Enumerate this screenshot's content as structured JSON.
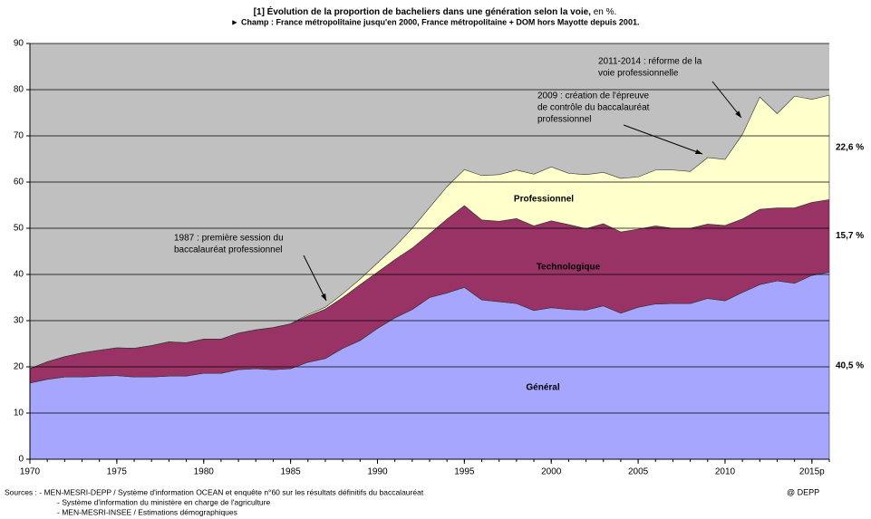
{
  "chart_data": {
    "type": "stacked_area",
    "title": "[1] Évolution de la proportion de bacheliers dans une génération selon la voie,",
    "title_unit": "en %.",
    "subtitle": "► Champ : France métropolitaine jusqu'en 2000, France métropolitaine + DOM hors Mayotte depuis 2001.",
    "x": [
      1970,
      1971,
      1972,
      1973,
      1974,
      1975,
      1976,
      1977,
      1978,
      1979,
      1980,
      1981,
      1982,
      1983,
      1984,
      1985,
      1986,
      1987,
      1988,
      1989,
      1990,
      1991,
      1992,
      1993,
      1994,
      1995,
      1996,
      1997,
      1998,
      1999,
      2000,
      2001,
      2002,
      2003,
      2004,
      2005,
      2006,
      2007,
      2008,
      2009,
      2010,
      2011,
      2012,
      2013,
      2014,
      2015,
      2016
    ],
    "series": [
      {
        "name": "Général",
        "color": "#a6a6ff",
        "values": [
          16.5,
          17.3,
          17.8,
          17.8,
          18.0,
          18.1,
          17.8,
          17.8,
          18.0,
          18.0,
          18.6,
          18.6,
          19.4,
          19.6,
          19.4,
          19.6,
          21.0,
          21.8,
          24.0,
          25.7,
          28.3,
          30.6,
          32.4,
          35.0,
          36.0,
          37.2,
          34.5,
          34.1,
          33.7,
          32.2,
          32.8,
          32.4,
          32.3,
          33.2,
          31.6,
          32.9,
          33.6,
          33.7,
          33.7,
          34.8,
          34.3,
          36.1,
          37.8,
          38.6,
          38.1,
          39.8,
          40.5
        ],
        "value_labels": [
          null,
          null,
          null,
          null,
          null,
          null,
          null,
          null,
          null,
          null,
          null,
          null,
          null,
          null,
          null,
          null,
          null,
          null,
          null,
          null,
          null,
          null,
          null,
          null,
          null,
          null,
          null,
          null,
          null,
          null,
          null,
          null,
          null,
          null,
          null,
          null,
          null,
          null,
          null,
          null,
          null,
          null,
          null,
          null,
          null,
          null,
          "40,5 %"
        ]
      },
      {
        "name": "Technologique",
        "color": "#993366",
        "values": [
          3.1,
          3.8,
          4.4,
          5.2,
          5.6,
          6.0,
          6.2,
          6.8,
          7.4,
          7.2,
          7.4,
          7.4,
          7.9,
          8.4,
          9.1,
          9.7,
          10.0,
          10.7,
          11.0,
          12.1,
          12.2,
          12.6,
          13.3,
          13.8,
          16.0,
          17.7,
          17.3,
          17.4,
          18.4,
          18.3,
          18.8,
          18.4,
          17.6,
          17.8,
          17.6,
          16.9,
          16.9,
          16.3,
          16.3,
          16.1,
          16.3,
          15.9,
          16.3,
          15.8,
          16.3,
          15.8,
          15.7
        ],
        "value_labels": [
          null,
          null,
          null,
          null,
          null,
          null,
          null,
          null,
          null,
          null,
          null,
          null,
          null,
          null,
          null,
          null,
          null,
          null,
          null,
          null,
          null,
          null,
          null,
          null,
          null,
          null,
          null,
          null,
          null,
          null,
          null,
          null,
          null,
          null,
          null,
          null,
          null,
          null,
          null,
          null,
          null,
          null,
          null,
          null,
          null,
          null,
          "15,7 %"
        ]
      },
      {
        "name": "Professionnel",
        "color": "#ffffcc",
        "values": [
          0,
          0,
          0,
          0,
          0,
          0,
          0,
          0,
          0,
          0,
          0,
          0,
          0,
          0,
          0,
          0,
          0.3,
          0.4,
          0.8,
          1.2,
          2.0,
          2.8,
          4.3,
          5.7,
          7.0,
          7.8,
          9.6,
          10.1,
          10.5,
          11.2,
          11.7,
          11.1,
          11.7,
          11.1,
          11.6,
          11.3,
          12.1,
          12.6,
          12.3,
          14.4,
          14.3,
          18.3,
          24.3,
          20.4,
          24.2,
          22.3,
          22.6
        ],
        "value_labels": [
          null,
          null,
          null,
          null,
          null,
          null,
          null,
          null,
          null,
          null,
          null,
          null,
          null,
          null,
          null,
          null,
          null,
          null,
          null,
          null,
          null,
          null,
          null,
          null,
          null,
          null,
          null,
          null,
          null,
          null,
          null,
          null,
          null,
          null,
          null,
          null,
          null,
          null,
          null,
          null,
          null,
          null,
          null,
          null,
          null,
          null,
          "22,6 %"
        ]
      }
    ],
    "xlim": [
      1970,
      2016
    ],
    "xticks": [
      1970,
      1975,
      1980,
      1985,
      1990,
      1995,
      2000,
      2005,
      2010,
      {
        "value": 2015,
        "label": "2015p"
      }
    ],
    "ylim": [
      0,
      90
    ],
    "yticks": [
      0,
      10,
      20,
      30,
      40,
      50,
      60,
      70,
      80,
      90
    ],
    "grid": true,
    "annotations": [
      {
        "lines": [
          "1987 : première session du",
          "baccalauréat professionnel"
        ]
      },
      {
        "lines": [
          "2009 : création de l'épreuve",
          "de contrôle du baccalauréat",
          "professionnel"
        ]
      },
      {
        "lines": [
          "2011-2014 : réforme de la",
          "voie professionnelle"
        ]
      }
    ],
    "sources": [
      "Sources :  - MEN-MESRI-DEPP / Système d'information OCEAN et enquête n°60 sur les résultats définitifs du baccalauréat",
      "- Système d'information du ministère en charge de l'agriculture",
      "- MEN-MESRI-INSEE / Estimations démographiques"
    ],
    "credit": "@ DEPP"
  }
}
